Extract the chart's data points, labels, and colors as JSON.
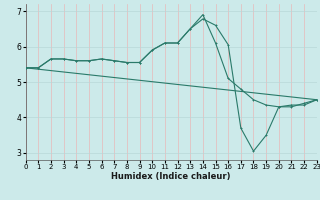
{
  "xlabel": "Humidex (Indice chaleur)",
  "bg_color": "#cceaea",
  "grid_color_v": "#e8b8b8",
  "grid_color_h": "#b8d8d8",
  "line_color": "#2a7a6a",
  "x_min": 0,
  "x_max": 23,
  "y_min": 2.8,
  "y_max": 7.2,
  "line1_x": [
    0,
    1,
    2,
    3,
    4,
    5,
    6,
    7,
    8,
    9,
    10,
    11,
    12,
    13,
    14,
    15,
    16,
    17,
    18,
    19,
    20,
    21,
    22,
    23
  ],
  "line1_y": [
    5.4,
    5.4,
    5.65,
    5.65,
    5.6,
    5.6,
    5.65,
    5.6,
    5.55,
    5.55,
    5.9,
    6.1,
    6.1,
    6.5,
    6.78,
    6.6,
    6.05,
    3.7,
    3.05,
    3.5,
    4.3,
    4.35,
    4.35,
    4.5
  ],
  "line2_x": [
    0,
    1,
    2,
    3,
    4,
    5,
    6,
    7,
    8,
    9,
    10,
    11,
    12,
    13,
    14,
    15,
    16,
    17,
    18,
    19,
    20,
    21,
    22,
    23
  ],
  "line2_y": [
    5.4,
    5.4,
    5.65,
    5.65,
    5.6,
    5.6,
    5.65,
    5.6,
    5.55,
    5.55,
    5.9,
    6.1,
    6.1,
    6.5,
    6.9,
    6.1,
    5.1,
    4.8,
    4.5,
    4.35,
    4.3,
    4.3,
    4.4,
    4.5
  ],
  "line3_x": [
    0,
    23
  ],
  "line3_y": [
    5.4,
    4.5
  ],
  "yticks": [
    3,
    4,
    5,
    6,
    7
  ],
  "xticks": [
    0,
    1,
    2,
    3,
    4,
    5,
    6,
    7,
    8,
    9,
    10,
    11,
    12,
    13,
    14,
    15,
    16,
    17,
    18,
    19,
    20,
    21,
    22,
    23
  ]
}
